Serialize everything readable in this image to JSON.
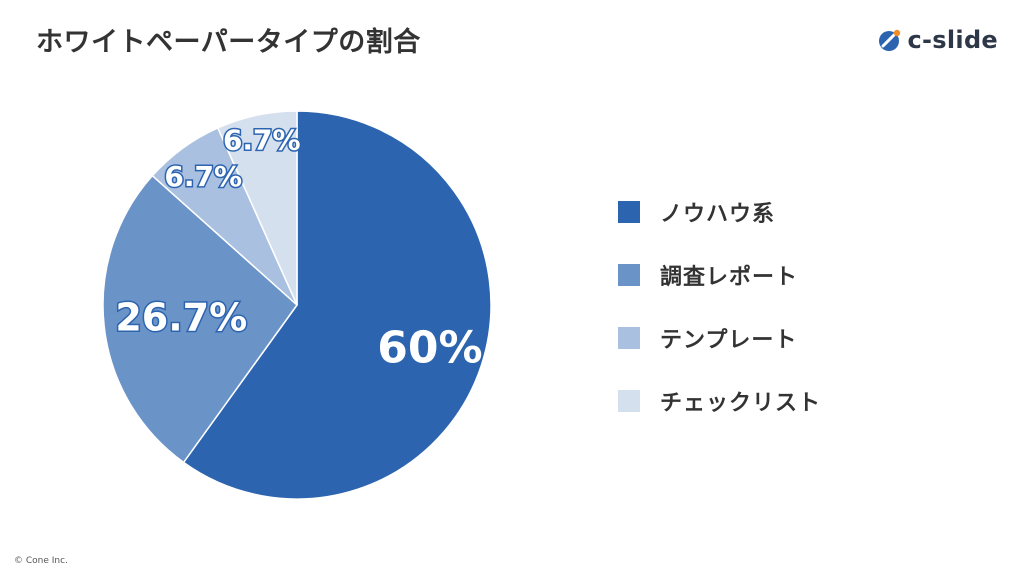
{
  "title": "ホワイトペーパータイプの割合",
  "logo": {
    "text": "c-slide"
  },
  "copyright": "© Cone Inc.",
  "chart_data": {
    "type": "pie",
    "title": "ホワイトペーパータイプの割合",
    "start_angle": "12 o'clock, clockwise",
    "slices": [
      {
        "label": "ノウハウ系",
        "value": 60,
        "display": "60%",
        "color": "#2c64b0"
      },
      {
        "label": "調査レポート",
        "value": 26.7,
        "display": "26.7%",
        "color": "#6a93c8"
      },
      {
        "label": "テンプレート",
        "value": 6.7,
        "display": "6.7%",
        "color": "#a9c0e0"
      },
      {
        "label": "チェックリスト",
        "value": 6.7,
        "display": "6.7%",
        "color": "#d5e0ef"
      }
    ],
    "legend_placement": "right"
  }
}
